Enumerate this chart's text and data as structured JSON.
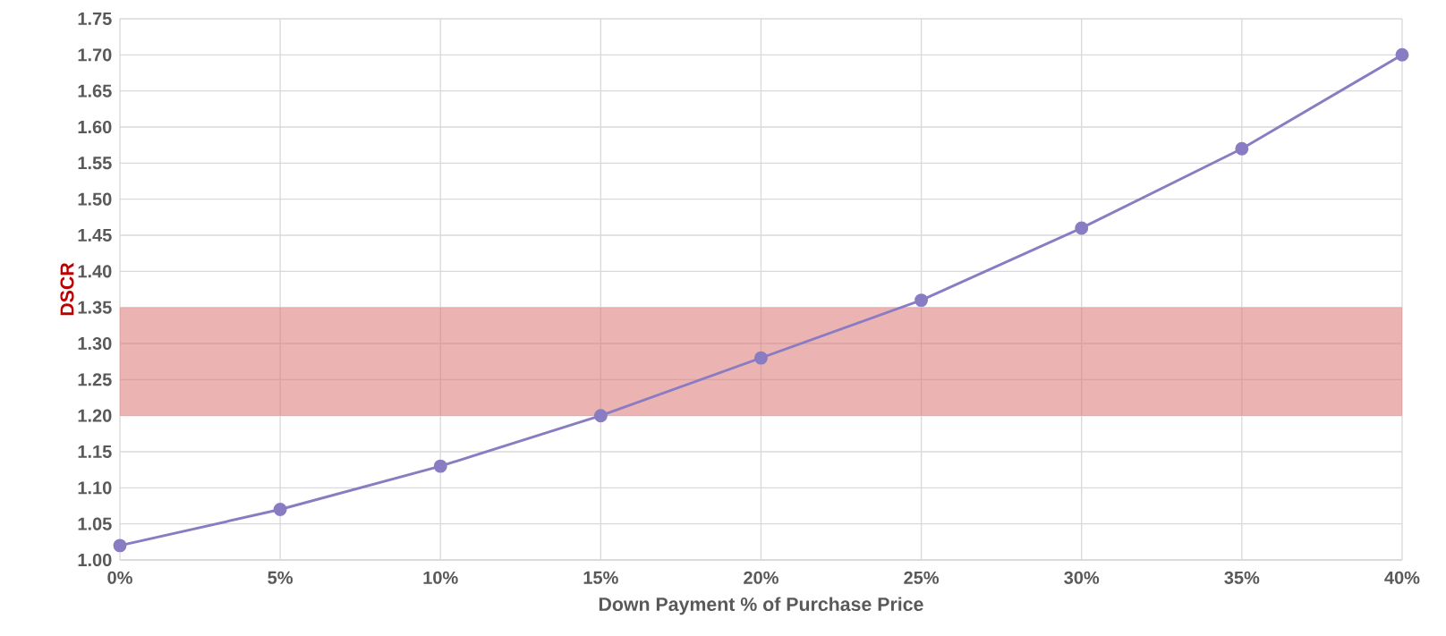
{
  "chart_data": {
    "type": "line",
    "xlabel": "Down Payment % of Purchase Price",
    "ylabel": "DSCR",
    "x": [
      0,
      5,
      10,
      15,
      20,
      25,
      30,
      35,
      40
    ],
    "series": [
      {
        "color": "#8a7cc2",
        "values": [
          1.02,
          1.07,
          1.13,
          1.2,
          1.28,
          1.36,
          1.46,
          1.57,
          1.7
        ]
      }
    ],
    "xlim": [
      0,
      40
    ],
    "xticks": [
      {
        "value": 0,
        "label": "0%"
      },
      {
        "value": 5,
        "label": "5%"
      },
      {
        "value": 10,
        "label": "10%"
      },
      {
        "value": 15,
        "label": "15%"
      },
      {
        "value": 20,
        "label": "20%"
      },
      {
        "value": 25,
        "label": "25%"
      },
      {
        "value": 30,
        "label": "30%"
      },
      {
        "value": 35,
        "label": "35%"
      },
      {
        "value": 40,
        "label": "40%"
      }
    ],
    "ylim": [
      1.0,
      1.75
    ],
    "yticks": [
      {
        "value": 1.0,
        "label": "1.00"
      },
      {
        "value": 1.05,
        "label": "1.05"
      },
      {
        "value": 1.1,
        "label": "1.10"
      },
      {
        "value": 1.15,
        "label": "1.15"
      },
      {
        "value": 1.2,
        "label": "1.20"
      },
      {
        "value": 1.25,
        "label": "1.25"
      },
      {
        "value": 1.3,
        "label": "1.30"
      },
      {
        "value": 1.35,
        "label": "1.35"
      },
      {
        "value": 1.4,
        "label": "1.40"
      },
      {
        "value": 1.45,
        "label": "1.45"
      },
      {
        "value": 1.5,
        "label": "1.50"
      },
      {
        "value": 1.55,
        "label": "1.55"
      },
      {
        "value": 1.6,
        "label": "1.60"
      },
      {
        "value": 1.65,
        "label": "1.65"
      },
      {
        "value": 1.7,
        "label": "1.70"
      },
      {
        "value": 1.75,
        "label": "1.75"
      }
    ],
    "bands": [
      {
        "axis": "y",
        "from": 1.2,
        "to": 1.35,
        "color": "#dc7474"
      }
    ],
    "grid": true,
    "marker": "circle",
    "line_style": "solid"
  }
}
